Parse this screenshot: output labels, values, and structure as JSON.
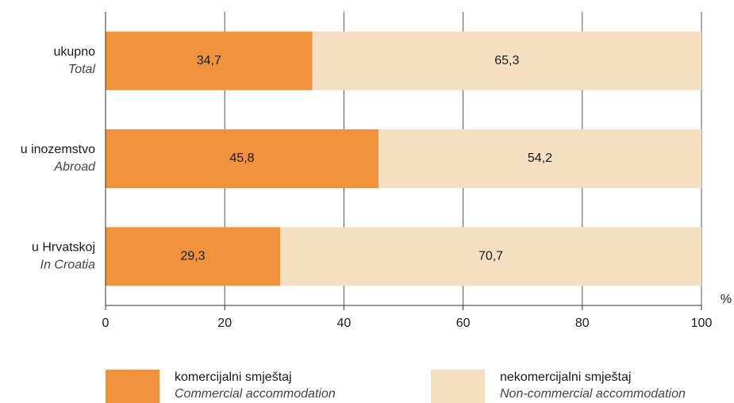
{
  "chart_data": {
    "type": "stacked_barh",
    "categories": [
      [
        "ukupno",
        "Total"
      ],
      [
        "u inozemstvo",
        "Abroad"
      ],
      [
        "u Hrvatskoj",
        "In Croatia"
      ]
    ],
    "series": [
      {
        "name": "komercijalni smještaj",
        "name_en": "Commercial accommodation",
        "color": "#f0923b",
        "values": [
          34.7,
          45.8,
          29.3
        ],
        "value_labels": [
          "34,7",
          "45,8",
          "29,3"
        ]
      },
      {
        "name": "nekomercijalni smještaj",
        "name_en": "Non-commercial accommodation",
        "color": "#f4dfc1",
        "values": [
          65.3,
          54.2,
          70.7
        ],
        "value_labels": [
          "65,3",
          "54,2",
          "70,7"
        ]
      }
    ],
    "xlim": [
      0,
      100
    ],
    "xticks": [
      0,
      20,
      40,
      60,
      80,
      100
    ],
    "x_unit": "%",
    "grid": true
  }
}
